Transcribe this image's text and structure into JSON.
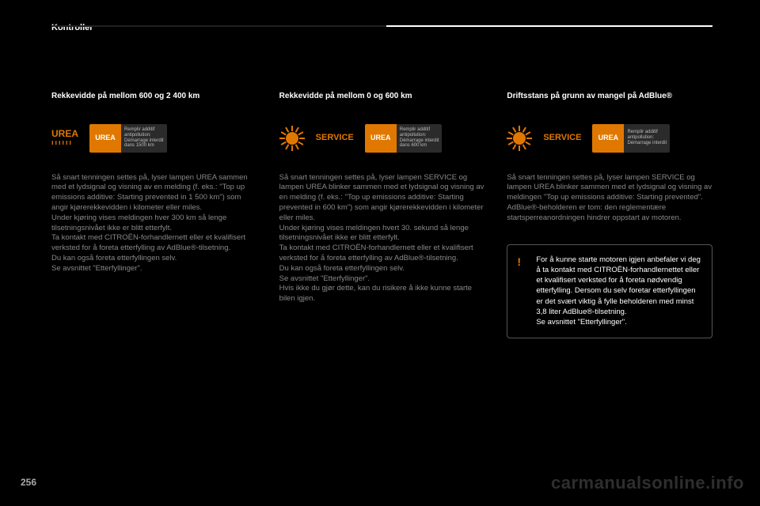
{
  "header": {
    "section": "Kontroller"
  },
  "columns": [
    {
      "heading": "Rekkevidde på mellom 600 og 2 400 km",
      "iconRow": {
        "type": "urea-text",
        "urea_line1": "UREA",
        "urea_line2": "ıııııı",
        "display_left": "UREA",
        "display_r1": "Remplir additif",
        "display_r2": "antipollution:",
        "display_r3": "Démarrage interdit",
        "display_r4": "dans 1500 km"
      },
      "body": "Så snart tenningen settes på, lyser lampen UREA sammen med et lydsignal og visning av en melding (f. eks.: \"Top up emissions additive: Starting prevented in 1 500 km\") som angir kjørerekkevidden i kilometer eller miles.\nUnder kjøring vises meldingen hver 300 km så lenge tilsetningsnivået ikke er blitt etterfylt.\nTa kontakt med CITROËN-forhandlernett eller et kvalifisert verksted for å foreta etterfylling av AdBlue®-tilsetning.\nDu kan også foreta etterfyllingen selv.\nSe avsnittet \"Etterfyllinger\"."
    },
    {
      "heading": "Rekkevidde på mellom 0 og 600 km",
      "iconRow": {
        "type": "sun-service",
        "service": "SERVICE",
        "display_left": "UREA",
        "display_r1": "Remplir additif",
        "display_r2": "antipollution:",
        "display_r3": "Démarrage interdit",
        "display_r4": "dans 600 km"
      },
      "body": "Så snart tenningen settes på, lyser lampen SERVICE og lampen UREA blinker sammen med et lydsignal og visning av en melding (f. eks.: \"Top up emissions additive: Starting prevented in 600 km\") som angir kjørerekkevidden i kilometer eller miles.\nUnder kjøring vises meldingen hvert 30. sekund så lenge tilsetningsnivået ikke er blitt etterfylt.\nTa kontakt med CITROËN-forhandlernett eller et kvalifisert verksted for å foreta etterfylling av AdBlue®-tilsetning.\nDu kan også foreta etterfyllingen selv.\nSe avsnittet \"Etterfyllinger\".\nHvis ikke du gjør dette, kan du risikere å ikke kunne starte bilen igjen."
    },
    {
      "heading": "Driftsstans på grunn av mangel på AdBlue®",
      "iconRow": {
        "type": "sun-service",
        "service": "SERVICE",
        "display_left": "UREA",
        "display_r1": "Remplir additif",
        "display_r2": "antipollution:",
        "display_r3": "Démarrage interdit",
        "display_r4": ""
      },
      "body": "Så snart tenningen settes på, lyser lampen SERVICE og lampen UREA blinker sammen med et lydsignal og visning av meldingen \"Top up emissions additive: Starting prevented\".\nAdBlue®-beholderen er tom: den reglementære startsperreanordningen hindrer oppstart av motoren.",
      "callout": "For å kunne starte motoren igjen anbefaler vi deg å ta kontakt med CITROËN-forhandlernettet eller et kvalifisert verksted for å foreta nødvendig etterfylling. Dersom du selv foretar etterfyllingen er det svært viktig å fylle beholderen med minst 3,8 liter AdBlue®-tilsetning.\nSe avsnittet \"Etterfyllinger\"."
    }
  ],
  "pageNumber": "256",
  "watermark": "carmanualsonline.info",
  "colors": {
    "accent": "#e07800"
  }
}
